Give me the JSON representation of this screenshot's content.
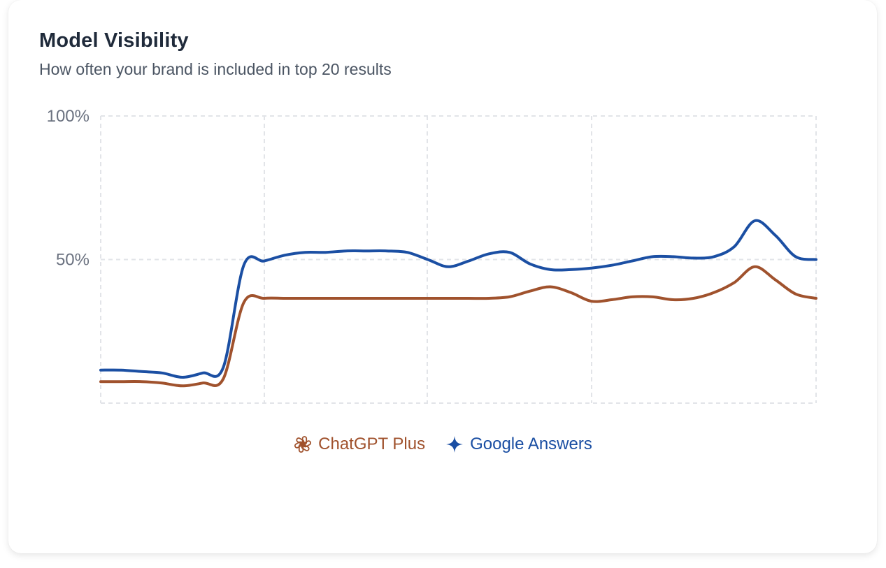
{
  "card": {
    "title": "Model Visibility",
    "subtitle": "How often your brand is included in top 20 results"
  },
  "colors": {
    "chatgpt": "#a0522d",
    "google": "#1b4fa3",
    "grid": "#e2e4e8",
    "tick": "#6b7280"
  },
  "chart_data": {
    "type": "line",
    "title": "Model Visibility",
    "subtitle": "How often your brand is included in top 20 results",
    "xlabel": "",
    "ylabel": "",
    "ylim": [
      0,
      100
    ],
    "yticks": [
      "100%",
      "50%"
    ],
    "ytick_values": [
      100,
      50
    ],
    "x": [
      0,
      0.25,
      0.5,
      0.75,
      1,
      1.25,
      1.5,
      1.75,
      2,
      2.25,
      2.5,
      2.75,
      3,
      3.25,
      3.5,
      3.75,
      4,
      4.25,
      4.5,
      4.75,
      5,
      5.25,
      5.5,
      5.75,
      6,
      6.25,
      6.5,
      6.75,
      7,
      7.25,
      7.5,
      7.75,
      8,
      8.25,
      8.5,
      8.75
    ],
    "xlim": [
      0,
      8.75
    ],
    "grid": true,
    "legend_position": "bottom-center",
    "series": [
      {
        "name": "ChatGPT Plus",
        "icon": "openai-icon",
        "color": "#a0522d",
        "values": [
          7.5,
          7.5,
          7.5,
          7,
          6,
          7,
          8.5,
          35,
          36.5,
          36.5,
          36.5,
          36.5,
          36.5,
          36.5,
          36.5,
          36.5,
          36.5,
          36.5,
          36.5,
          36.5,
          37,
          39,
          40.5,
          38.5,
          35.5,
          36,
          37,
          37,
          36,
          36.5,
          38.5,
          42,
          47.5,
          43,
          38,
          36.5
        ]
      },
      {
        "name": "Google Answers",
        "icon": "sparkle-icon",
        "color": "#1b4fa3",
        "values": [
          11.5,
          11.5,
          11,
          10.5,
          9,
          10.5,
          12.5,
          48,
          49.5,
          51.5,
          52.5,
          52.5,
          53,
          53,
          53,
          52.5,
          50,
          47.5,
          49.5,
          52,
          52.5,
          48.5,
          46.5,
          46.5,
          47,
          48,
          49.5,
          51,
          51,
          50.5,
          51,
          54.5,
          63.5,
          58.5,
          51,
          50
        ]
      }
    ]
  },
  "legend": {
    "items": [
      {
        "label": "ChatGPT Plus",
        "icon": "openai-icon"
      },
      {
        "label": "Google Answers",
        "icon": "sparkle-icon"
      }
    ]
  }
}
